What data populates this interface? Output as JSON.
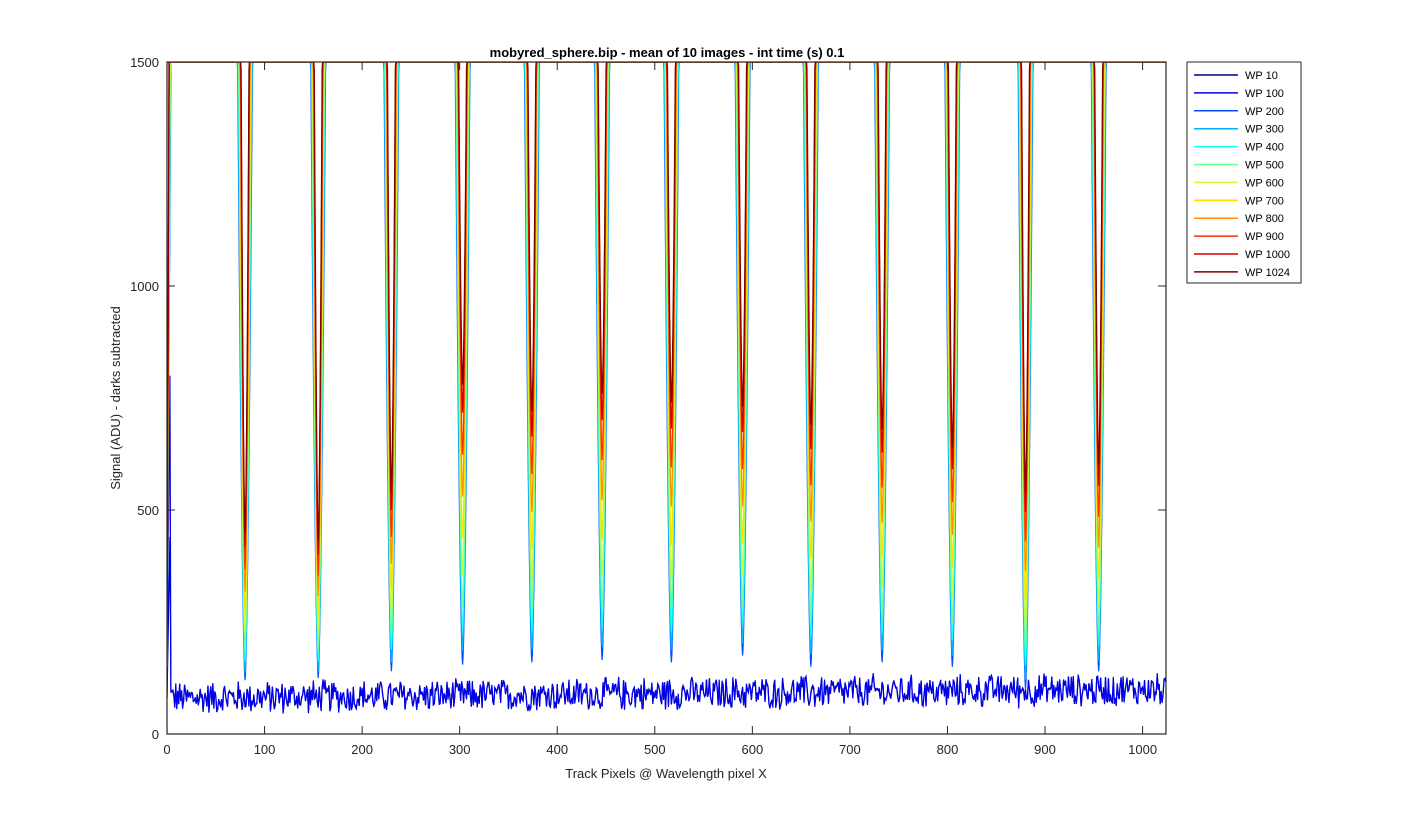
{
  "chart_data": {
    "type": "line",
    "title": "mobyred_sphere.bip - mean of 10 images - int time (s) 0.1",
    "xlabel": "Track Pixels @ Wavelength pixel X",
    "ylabel": "Signal (ADU) - darks subtracted",
    "xlim": [
      0,
      1024
    ],
    "ylim": [
      0,
      1500
    ],
    "xticks": [
      0,
      100,
      200,
      300,
      400,
      500,
      600,
      700,
      800,
      900,
      1000
    ],
    "yticks": [
      0,
      500,
      1000,
      1500
    ],
    "grid": false,
    "legend_position": "outside-top-right",
    "baseline_noise": {
      "mean_start": 80,
      "mean_end": 100,
      "amplitude": 40
    },
    "peak_centers": [
      5,
      80,
      155,
      230,
      303,
      374,
      446,
      517,
      590,
      660,
      733,
      805,
      880,
      955
    ],
    "peak_minima_low": [
      null,
      120,
      125,
      140,
      155,
      160,
      165,
      160,
      175,
      150,
      160,
      150,
      100,
      140
    ],
    "peak_minima_high": [
      null,
      450,
      430,
      540,
      780,
      720,
      760,
      740,
      730,
      690,
      680,
      640,
      540,
      600
    ],
    "series": [
      {
        "name": "WP 10",
        "color": "#00008F",
        "width_factor": 1.0,
        "level": 0.0
      },
      {
        "name": "WP 100",
        "color": "#0000EF",
        "width_factor": 1.0,
        "level": 0.0
      },
      {
        "name": "WP 200",
        "color": "#004FFF",
        "width_factor": 0.93,
        "level": 0.0
      },
      {
        "name": "WP 300",
        "color": "#00AFFF",
        "width_factor": 0.86,
        "level": 0.05
      },
      {
        "name": "WP 400",
        "color": "#0FFFEF",
        "width_factor": 0.79,
        "level": 0.12
      },
      {
        "name": "WP 500",
        "color": "#6FFF8F",
        "width_factor": 0.72,
        "level": 0.2
      },
      {
        "name": "WP 600",
        "color": "#CFFF2F",
        "width_factor": 0.65,
        "level": 0.32
      },
      {
        "name": "WP 700",
        "color": "#FFDF00",
        "width_factor": 0.58,
        "level": 0.45
      },
      {
        "name": "WP 800",
        "color": "#FF8F00",
        "width_factor": 0.51,
        "level": 0.6
      },
      {
        "name": "WP 900",
        "color": "#FF2F00",
        "width_factor": 0.44,
        "level": 0.75
      },
      {
        "name": "WP 1000",
        "color": "#CF0000",
        "width_factor": 0.37,
        "level": 0.9
      },
      {
        "name": "WP 1024",
        "color": "#800000",
        "width_factor": 0.34,
        "level": 1.0
      }
    ]
  }
}
